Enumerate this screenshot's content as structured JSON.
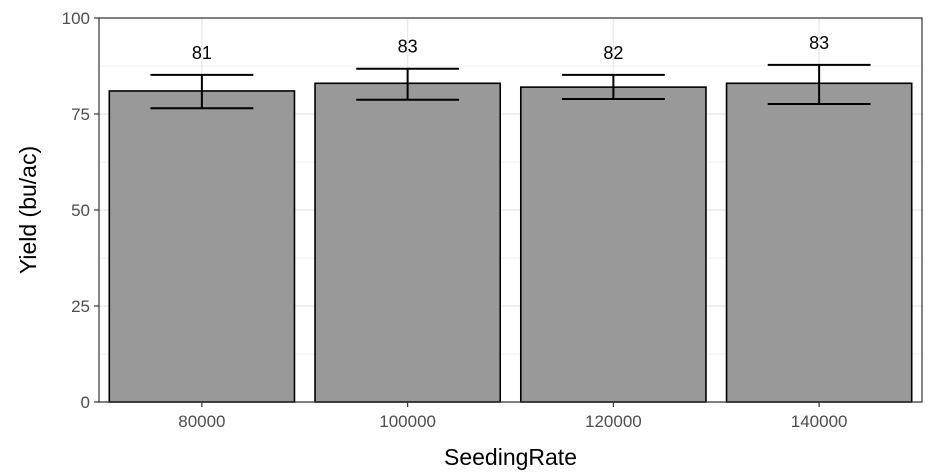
{
  "chart_data": {
    "type": "bar",
    "categories": [
      "80000",
      "100000",
      "120000",
      "140000"
    ],
    "values": [
      81,
      83,
      82,
      83
    ],
    "error_bars": [
      {
        "low": 76.5,
        "high": 85.2
      },
      {
        "low": 78.7,
        "high": 86.8
      },
      {
        "low": 78.9,
        "high": 85.2
      },
      {
        "low": 77.6,
        "high": 87.8
      }
    ],
    "data_labels": [
      "81",
      "83",
      "82",
      "83"
    ],
    "title": "",
    "xlabel": "SeedingRate",
    "ylabel": "Yield (bu/ac)",
    "ylim": [
      0,
      100
    ],
    "yticks": [
      0,
      25,
      50,
      75,
      100
    ],
    "ytick_labels": [
      "0",
      "25",
      "50",
      "75",
      "100"
    ],
    "grid": true,
    "legend": "none",
    "colors": {
      "bar_fill": "#999999",
      "bar_stroke": "#000000",
      "grid": "#ebebeb",
      "panel_border": "#333333"
    }
  }
}
